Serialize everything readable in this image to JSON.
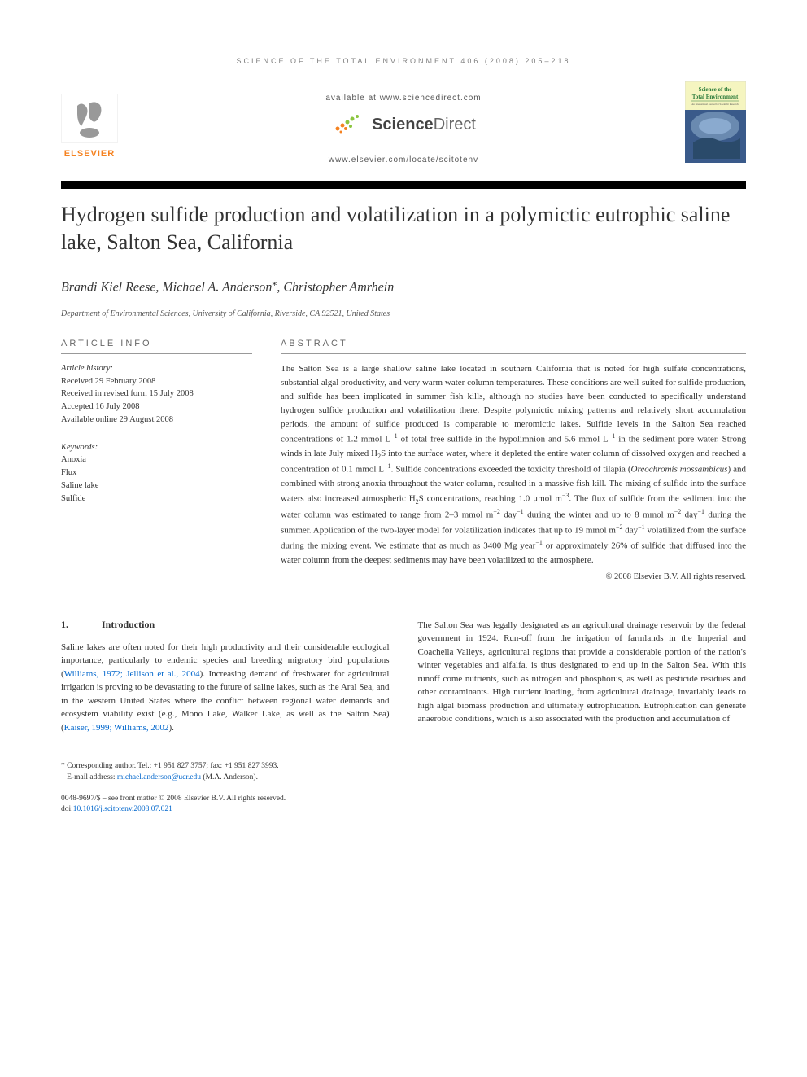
{
  "header": {
    "running": "SCIENCE OF THE TOTAL ENVIRONMENT 406 (2008) 205–218",
    "available": "available at www.sciencedirect.com",
    "sciencedirect": {
      "prefix": "Science",
      "suffix": "Direct"
    },
    "journal_url": "www.elsevier.com/locate/scitotenv"
  },
  "cover": {
    "title_line1": "Science of the",
    "title_line2": "Total Environment",
    "bg_top": "#f5f5c0",
    "bg_bottom": "#3a5a8a",
    "text_color": "#2a7a3a"
  },
  "title": "Hydrogen sulfide production and volatilization in a polymictic eutrophic saline lake, Salton Sea, California",
  "authors": "Brandi Kiel Reese, Michael A. Anderson*, Christopher Amrhein",
  "affiliation": "Department of Environmental Sciences, University of California, Riverside, CA 92521, United States",
  "article_info": {
    "label": "ARTICLE INFO",
    "history_label": "Article history:",
    "received": "Received 29 February 2008",
    "revised": "Received in revised form 15 July 2008",
    "accepted": "Accepted 16 July 2008",
    "online": "Available online 29 August 2008",
    "keywords_label": "Keywords:",
    "keywords": [
      "Anoxia",
      "Flux",
      "Saline lake",
      "Sulfide"
    ]
  },
  "abstract": {
    "label": "ABSTRACT",
    "text": "The Salton Sea is a large shallow saline lake located in southern California that is noted for high sulfate concentrations, substantial algal productivity, and very warm water column temperatures. These conditions are well-suited for sulfide production, and sulfide has been implicated in summer fish kills, although no studies have been conducted to specifically understand hydrogen sulfide production and volatilization there. Despite polymictic mixing patterns and relatively short accumulation periods, the amount of sulfide produced is comparable to meromictic lakes. Sulfide levels in the Salton Sea reached concentrations of 1.2 mmol L⁻¹ of total free sulfide in the hypolimnion and 5.6 mmol L⁻¹ in the sediment pore water. Strong winds in late July mixed H₂S into the surface water, where it depleted the entire water column of dissolved oxygen and reached a concentration of 0.1 mmol L⁻¹. Sulfide concentrations exceeded the toxicity threshold of tilapia (Oreochromis mossambicus) and combined with strong anoxia throughout the water column, resulted in a massive fish kill. The mixing of sulfide into the surface waters also increased atmospheric H₂S concentrations, reaching 1.0 μmol m⁻³. The flux of sulfide from the sediment into the water column was estimated to range from 2–3 mmol m⁻² day⁻¹ during the winter and up to 8 mmol m⁻² day⁻¹ during the summer. Application of the two-layer model for volatilization indicates that up to 19 mmol m⁻² day⁻¹ volatilized from the surface during the mixing event. We estimate that as much as 3400 Mg year⁻¹ or approximately 26% of sulfide that diffused into the water column from the deepest sediments may have been volatilized to the atmosphere.",
    "copyright": "© 2008 Elsevier B.V. All rights reserved."
  },
  "intro": {
    "heading_num": "1.",
    "heading_text": "Introduction",
    "col1": "Saline lakes are often noted for their high productivity and their considerable ecological importance, particularly to endemic species and breeding migratory bird populations (Williams, 1972; Jellison et al., 2004). Increasing demand of freshwater for agricultural irrigation is proving to be devastating to the future of saline lakes, such as the Aral Sea, and in the western United States where the conflict between regional water demands and ecosystem viability exist (e.g., Mono Lake, Walker Lake, as well as the Salton Sea) (Kaiser, 1999; Williams, 2002).",
    "col1_links": [
      "Williams, 1972; Jellison et al., 2004",
      "Kaiser, 1999; Williams, 2002"
    ],
    "col2": "The Salton Sea was legally designated as an agricultural drainage reservoir by the federal government in 1924. Run-off from the irrigation of farmlands in the Imperial and Coachella Valleys, agricultural regions that provide a considerable portion of the nation's winter vegetables and alfalfa, is thus designated to end up in the Salton Sea. With this runoff come nutrients, such as nitrogen and phosphorus, as well as pesticide residues and other contaminants. High nutrient loading, from agricultural drainage, invariably leads to high algal biomass production and ultimately eutrophication. Eutrophication can generate anaerobic conditions, which is also associated with the production and accumulation of"
  },
  "footer": {
    "corresponding": "* Corresponding author. Tel.: +1 951 827 3757; fax: +1 951 827 3993.",
    "email_label": "E-mail address:",
    "email": "michael.anderson@ucr.edu",
    "email_author": "(M.A. Anderson).",
    "issn": "0048-9697/$ – see front matter © 2008 Elsevier B.V. All rights reserved.",
    "doi": "doi:10.1016/j.scitotenv.2008.07.021"
  },
  "colors": {
    "elsevier_orange": "#f58220",
    "sd_orange": "#f58220",
    "sd_green": "#8bc53f",
    "link_blue": "#0066cc"
  }
}
